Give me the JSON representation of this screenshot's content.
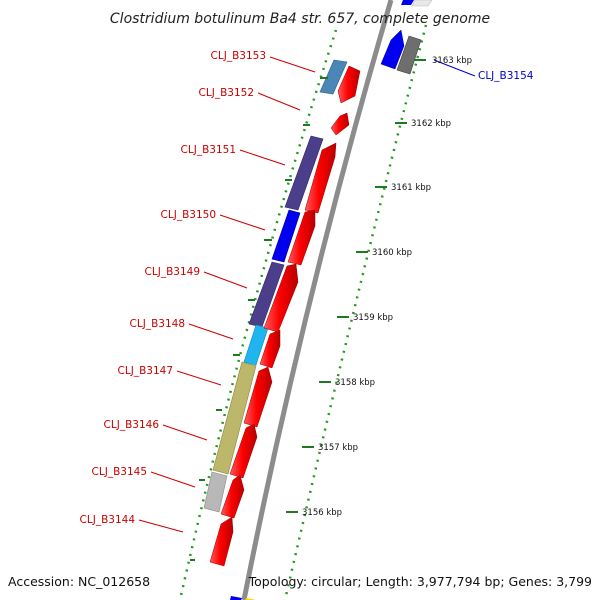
{
  "title": "Clostridium botulinum Ba4 str. 657, complete genome",
  "accession": "Accession: NC_012658",
  "topology": "Topology: circular; Length: 3,977,794 bp; Genes: 3,799",
  "colors": {
    "forward": "#ff0000",
    "reverse_blue": "#0000ee",
    "reverse_purple": "#4b3f8c",
    "steel": "#4a86b6",
    "cyan": "#1fb6f0",
    "olive": "#bdb76b",
    "gray": "#b8b8b8",
    "dark_gray": "#6e6e6e",
    "tick": "#1f7a1f",
    "label_forward": "#cc0000",
    "label_reverse": "#0000cc"
  },
  "ticks": [
    {
      "label": "3156 kbp"
    },
    {
      "label": "3157 kbp"
    },
    {
      "label": "3158 kbp"
    },
    {
      "label": "3159 kbp"
    },
    {
      "label": "3160 kbp"
    },
    {
      "label": "3161 kbp"
    },
    {
      "label": "3162 kbp"
    },
    {
      "label": "3163 kbp"
    }
  ],
  "gene_labels": [
    {
      "text": "CLJ_B3153"
    },
    {
      "text": "CLJ_B3152"
    },
    {
      "text": "CLJ_B3151"
    },
    {
      "text": "CLJ_B3150"
    },
    {
      "text": "CLJ_B3149"
    },
    {
      "text": "CLJ_B3148"
    },
    {
      "text": "CLJ_B3147"
    },
    {
      "text": "CLJ_B3146"
    },
    {
      "text": "CLJ_B3145"
    },
    {
      "text": "CLJ_B3144"
    },
    {
      "text": "CLJ_B3154"
    }
  ]
}
